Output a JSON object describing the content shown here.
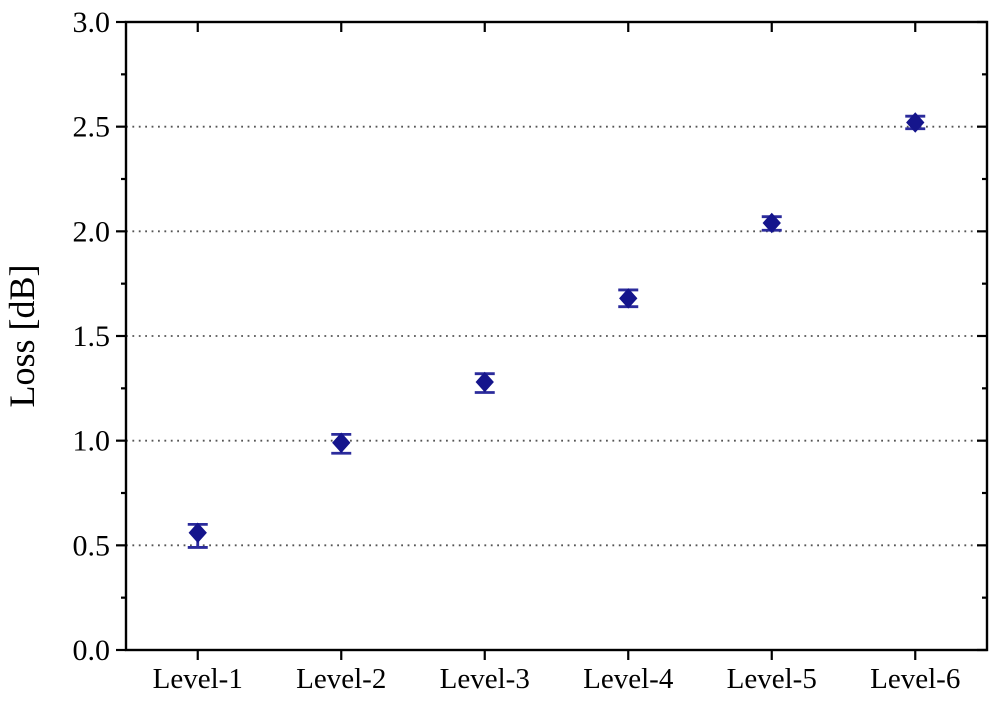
{
  "figure": {
    "background": "#ffffff"
  },
  "chart_data": {
    "type": "scatter",
    "title": "",
    "xlabel": "",
    "ylabel": "Loss [dB]",
    "categories": [
      "Level-1",
      "Level-2",
      "Level-3",
      "Level-4",
      "Level-5",
      "Level-6"
    ],
    "series": [
      {
        "name": "Loss",
        "marker": "diamond",
        "values": [
          0.56,
          0.99,
          1.28,
          1.68,
          2.04,
          2.52
        ],
        "err_up": [
          0.04,
          0.04,
          0.04,
          0.04,
          0.03,
          0.03
        ],
        "err_down": [
          0.07,
          0.05,
          0.05,
          0.04,
          0.035,
          0.03
        ]
      }
    ],
    "ylim": [
      0.0,
      3.0
    ],
    "y_major_step": 0.5,
    "y_minor_step": 0.25,
    "y_tick_labels": [
      "0.0",
      "0.5",
      "1.0",
      "1.5",
      "2.0",
      "2.5",
      "3.0"
    ],
    "gridlines_at": [
      0.5,
      1.0,
      1.5,
      2.0,
      2.5
    ],
    "grid_style": "dotted-horizontal",
    "legend_position": "none",
    "colors": {
      "marker": "#15158c",
      "error_bar": "#2b2b9c",
      "axis": "#000000",
      "grid": "#555555",
      "text": "#000000",
      "background": "#ffffff"
    }
  }
}
